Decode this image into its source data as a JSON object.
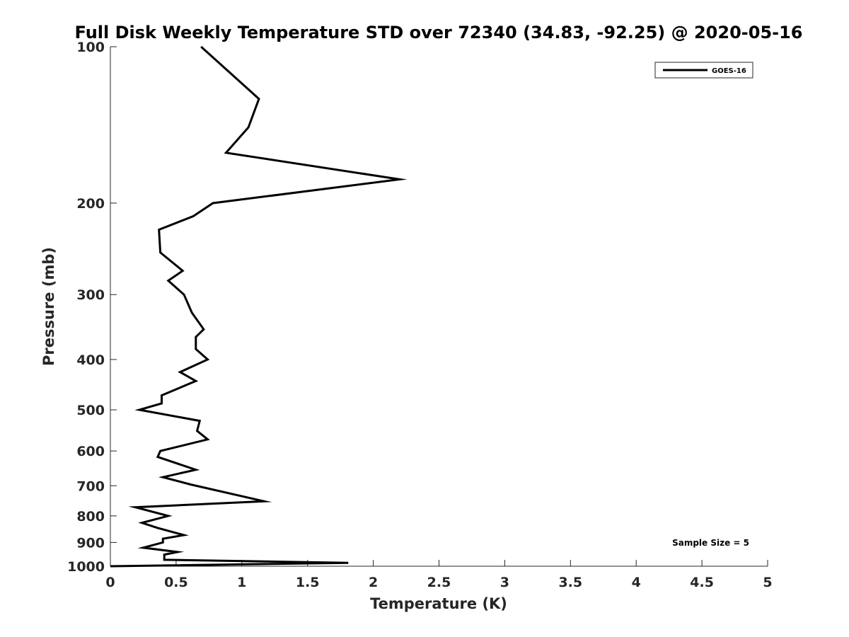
{
  "chart_data": {
    "type": "line",
    "title": "Full Disk Weekly Temperature STD over 72340 (34.83, -92.25) @ 2020-05-16",
    "xlabel": "Temperature (K)",
    "ylabel": "Pressure (mb)",
    "xlim": [
      0,
      5
    ],
    "ylim": [
      100,
      1000
    ],
    "y_scale": "log",
    "y_reversed": true,
    "grid": false,
    "legend_placement": "top-right",
    "x_ticks": [
      "0",
      "0.5",
      "1",
      "1.5",
      "2",
      "2.5",
      "3",
      "3.5",
      "4",
      "4.5",
      "5"
    ],
    "x_tick_values": [
      0,
      0.5,
      1,
      1.5,
      2,
      2.5,
      3,
      3.5,
      4,
      4.5,
      5
    ],
    "y_ticks": [
      "100",
      "200",
      "300",
      "400",
      "500",
      "600",
      "700",
      "800",
      "900",
      "1000"
    ],
    "y_tick_values": [
      100,
      200,
      300,
      400,
      500,
      600,
      700,
      800,
      900,
      1000
    ],
    "series": [
      {
        "name": "GOES-16",
        "color": "#000000",
        "points": [
          [
            0.69,
            100
          ],
          [
            1.13,
            126
          ],
          [
            1.05,
            143
          ],
          [
            0.88,
            160
          ],
          [
            2.2,
            180
          ],
          [
            0.78,
            200
          ],
          [
            0.63,
            212
          ],
          [
            0.37,
            225
          ],
          [
            0.38,
            249
          ],
          [
            0.55,
            270
          ],
          [
            0.44,
            282
          ],
          [
            0.56,
            300
          ],
          [
            0.62,
            325
          ],
          [
            0.71,
            350
          ],
          [
            0.65,
            362
          ],
          [
            0.65,
            382
          ],
          [
            0.74,
            400
          ],
          [
            0.53,
            423
          ],
          [
            0.65,
            440
          ],
          [
            0.39,
            469
          ],
          [
            0.39,
            486
          ],
          [
            0.22,
            500
          ],
          [
            0.68,
            525
          ],
          [
            0.66,
            549
          ],
          [
            0.74,
            570
          ],
          [
            0.38,
            600
          ],
          [
            0.36,
            616
          ],
          [
            0.65,
            652
          ],
          [
            0.4,
            674
          ],
          [
            0.61,
            696
          ],
          [
            1.05,
            738
          ],
          [
            1.17,
            750
          ],
          [
            0.19,
            770
          ],
          [
            0.44,
            800
          ],
          [
            0.24,
            825
          ],
          [
            0.36,
            844
          ],
          [
            0.56,
            871
          ],
          [
            0.4,
            885
          ],
          [
            0.4,
            900
          ],
          [
            0.25,
            921
          ],
          [
            0.51,
            939
          ],
          [
            0.41,
            950
          ],
          [
            0.41,
            972
          ],
          [
            1.81,
            985
          ],
          [
            0.0,
            1000
          ]
        ]
      }
    ],
    "annotations": [
      "Sample Size = 5"
    ]
  }
}
